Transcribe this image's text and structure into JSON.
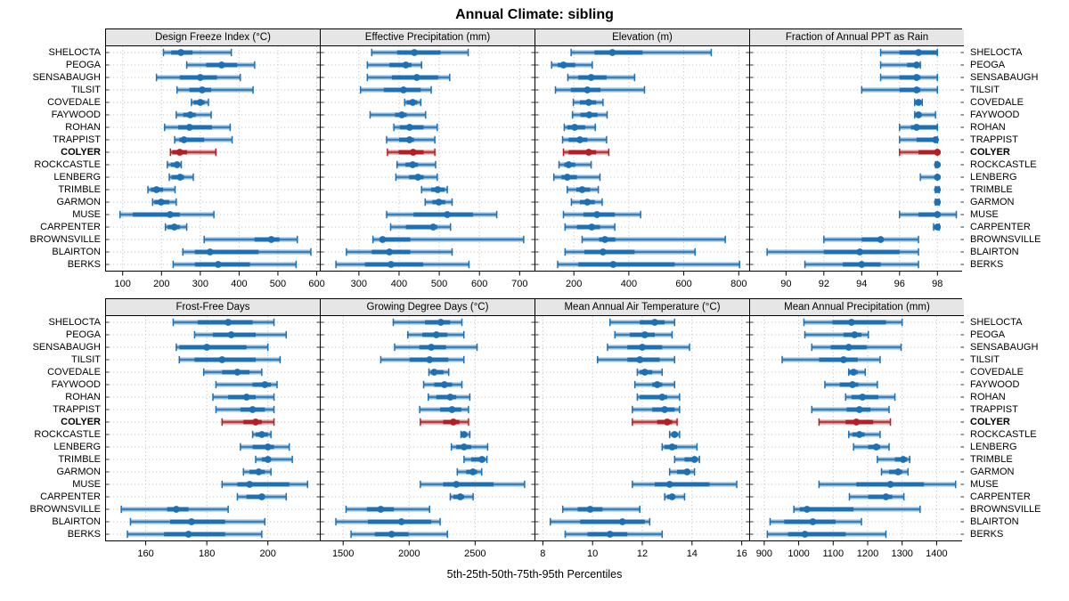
{
  "title": "Annual Climate: sibling",
  "caption": "5th-25th-50th-75th-95th Percentiles",
  "colors": {
    "blue": "#1d70b4",
    "red": "#b22025",
    "grid": "#c6c6c6",
    "header_bg": "#e6e6e6",
    "border": "#000000",
    "band_opacity": 0.5
  },
  "chart_data": {
    "type": "dot-interval-trellis",
    "title": "Annual Climate: sibling",
    "percentile_labels": [
      "5th",
      "25th",
      "50th",
      "75th",
      "95th"
    ],
    "legend_position": "none",
    "grid": true,
    "highlight_site": "COLYER",
    "sites": [
      "SHELOCTA",
      "PEOGA",
      "SENSABAUGH",
      "TILSIT",
      "COVEDALE",
      "FAYWOOD",
      "ROHAN",
      "TRAPPIST",
      "COLYER",
      "ROCKCASTLE",
      "LENBERG",
      "TRIMBLE",
      "GARMON",
      "MUSE",
      "CARPENTER",
      "BROWNSVILLE",
      "BLAIRTON",
      "BERKS"
    ],
    "panels": [
      {
        "title": "Design Freeze Index (°C)",
        "xlim": [
          57,
          608
        ],
        "ticks": [
          100,
          200,
          300,
          400,
          500,
          600
        ],
        "values": [
          [
            205,
            225,
            250,
            280,
            380
          ],
          [
            265,
            315,
            355,
            395,
            440
          ],
          [
            187,
            247,
            300,
            343,
            403
          ],
          [
            240,
            272,
            305,
            328,
            436
          ],
          [
            277,
            283,
            300,
            311,
            321
          ],
          [
            238,
            256,
            274,
            288,
            328
          ],
          [
            208,
            243,
            272,
            330,
            377
          ],
          [
            234,
            246,
            258,
            310,
            382
          ],
          [
            223,
            228,
            247,
            266,
            340
          ],
          [
            215,
            224,
            240,
            247,
            251
          ],
          [
            220,
            226,
            248,
            258,
            282
          ],
          [
            165,
            173,
            187,
            204,
            235
          ],
          [
            177,
            182,
            199,
            220,
            238
          ],
          [
            93,
            126,
            222,
            247,
            335
          ],
          [
            210,
            216,
            233,
            247,
            265
          ],
          [
            310,
            440,
            483,
            504,
            550
          ],
          [
            255,
            286,
            325,
            450,
            585
          ],
          [
            230,
            286,
            346,
            428,
            547
          ]
        ]
      },
      {
        "title": "Effective Precipitation (mm)",
        "xlim": [
          205,
          737
        ],
        "ticks": [
          300,
          400,
          500,
          600,
          700
        ],
        "values": [
          [
            332,
            395,
            438,
            503,
            572
          ],
          [
            321,
            376,
            417,
            431,
            456
          ],
          [
            321,
            382,
            444,
            497,
            526
          ],
          [
            304,
            362,
            411,
            454,
            480
          ],
          [
            414,
            419,
            434,
            445,
            454
          ],
          [
            328,
            390,
            407,
            419,
            466
          ],
          [
            387,
            402,
            426,
            461,
            495
          ],
          [
            369,
            400,
            426,
            437,
            489
          ],
          [
            371,
            399,
            435,
            461,
            489
          ],
          [
            395,
            416,
            434,
            447,
            491
          ],
          [
            392,
            425,
            447,
            461,
            495
          ],
          [
            456,
            480,
            496,
            513,
            520
          ],
          [
            465,
            483,
            499,
            515,
            532
          ],
          [
            369,
            436,
            520,
            584,
            643
          ],
          [
            379,
            417,
            485,
            495,
            528
          ],
          [
            335,
            354,
            359,
            428,
            710
          ],
          [
            269,
            332,
            376,
            428,
            532
          ],
          [
            243,
            315,
            380,
            460,
            574
          ]
        ]
      },
      {
        "title": "Elevation (m)",
        "xlim": [
          60,
          838
        ],
        "ticks": [
          200,
          400,
          600,
          800
        ],
        "values": [
          [
            190,
            275,
            340,
            450,
            700
          ],
          [
            119,
            141,
            162,
            205,
            267
          ],
          [
            178,
            216,
            263,
            319,
            421
          ],
          [
            133,
            189,
            249,
            297,
            457
          ],
          [
            198,
            222,
            254,
            281,
            306
          ],
          [
            195,
            224,
            256,
            286,
            321
          ],
          [
            165,
            176,
            203,
            241,
            278
          ],
          [
            159,
            181,
            222,
            249,
            319
          ],
          [
            162,
            181,
            254,
            281,
            327
          ],
          [
            146,
            165,
            181,
            205,
            263
          ],
          [
            127,
            155,
            176,
            211,
            295
          ],
          [
            176,
            209,
            230,
            259,
            289
          ],
          [
            191,
            222,
            249,
            276,
            303
          ],
          [
            162,
            235,
            284,
            349,
            443
          ],
          [
            168,
            211,
            265,
            295,
            349
          ],
          [
            230,
            292,
            313,
            351,
            751
          ],
          [
            168,
            238,
            306,
            421,
            641
          ],
          [
            141,
            216,
            343,
            567,
            803
          ]
        ]
      },
      {
        "title": "Fraction of Annual PPT as Rain",
        "xlim": [
          88.1,
          99.4
        ],
        "ticks": [
          90,
          92,
          94,
          96,
          98
        ],
        "values": [
          [
            95,
            96,
            97,
            98,
            98
          ],
          [
            95,
            96.4,
            96.9,
            97,
            97.1
          ],
          [
            95,
            96,
            96.9,
            97.1,
            98
          ],
          [
            94,
            96,
            96.9,
            97.1,
            98
          ],
          [
            96.8,
            96.9,
            97,
            97.1,
            97.2
          ],
          [
            96.8,
            96.9,
            97,
            97.1,
            97.9
          ],
          [
            96,
            96.6,
            96.9,
            98,
            98
          ],
          [
            96,
            96.9,
            97.9,
            98,
            98
          ],
          [
            96,
            97,
            98,
            98,
            98
          ],
          [
            97.9,
            98,
            98,
            98,
            98
          ],
          [
            97.1,
            97.9,
            98,
            98,
            98
          ],
          [
            97.9,
            98,
            98,
            98,
            98.1
          ],
          [
            97.9,
            98,
            98,
            98,
            98.1
          ],
          [
            96,
            97,
            98,
            98,
            99
          ],
          [
            97.8,
            97.9,
            98,
            98,
            98.1
          ],
          [
            92,
            94,
            95,
            95.1,
            97
          ],
          [
            89,
            92,
            93.9,
            96,
            97
          ],
          [
            91,
            93,
            94,
            95,
            97
          ]
        ]
      },
      {
        "title": "Frost-Free Days",
        "xlim": [
          147,
          217
        ],
        "ticks": [
          160,
          180,
          200
        ],
        "values": [
          [
            169,
            177,
            187,
            195,
            202
          ],
          [
            176,
            182,
            188,
            196,
            206
          ],
          [
            170,
            171,
            180,
            193,
            200
          ],
          [
            171,
            176,
            185,
            196,
            204
          ],
          [
            179,
            185,
            190,
            194,
            198
          ],
          [
            183,
            195,
            199,
            201,
            203
          ],
          [
            182,
            187,
            193,
            196,
            202
          ],
          [
            183,
            191,
            195,
            199,
            202
          ],
          [
            185,
            192,
            196,
            198,
            202
          ],
          [
            195,
            196,
            198,
            200,
            201
          ],
          [
            191,
            195,
            200,
            202,
            207
          ],
          [
            196,
            198,
            200,
            201,
            208
          ],
          [
            192,
            194,
            197,
            199,
            201
          ],
          [
            185,
            190,
            194,
            207,
            213
          ],
          [
            190,
            193,
            198,
            199,
            206
          ],
          [
            152,
            167,
            170,
            174,
            187
          ],
          [
            155,
            168,
            175,
            186,
            199
          ],
          [
            154,
            166,
            174,
            186,
            198
          ]
        ]
      },
      {
        "title": "Growing Degree Days (°C)",
        "xlim": [
          1330,
          2950
        ],
        "ticks": [
          1500,
          2000,
          2500
        ],
        "values": [
          [
            1880,
            2120,
            2240,
            2310,
            2400
          ],
          [
            1990,
            2100,
            2206,
            2290,
            2415
          ],
          [
            1890,
            2078,
            2168,
            2280,
            2515
          ],
          [
            1785,
            2003,
            2155,
            2297,
            2415
          ],
          [
            2150,
            2165,
            2190,
            2260,
            2300
          ],
          [
            2110,
            2190,
            2267,
            2325,
            2400
          ],
          [
            2145,
            2206,
            2312,
            2357,
            2460
          ],
          [
            2080,
            2235,
            2325,
            2395,
            2450
          ],
          [
            2085,
            2258,
            2335,
            2380,
            2450
          ],
          [
            2393,
            2403,
            2416,
            2438,
            2460
          ],
          [
            2320,
            2357,
            2416,
            2470,
            2595
          ],
          [
            2416,
            2470,
            2552,
            2574,
            2590
          ],
          [
            2365,
            2432,
            2484,
            2515,
            2550
          ],
          [
            2085,
            2258,
            2357,
            2640,
            2875
          ],
          [
            2312,
            2335,
            2387,
            2416,
            2485
          ],
          [
            1522,
            1680,
            1785,
            1885,
            2155
          ],
          [
            1445,
            1687,
            1942,
            2168,
            2235
          ],
          [
            1560,
            1740,
            1868,
            1996,
            2290
          ]
        ]
      },
      {
        "title": "Mean Annual Air Temperature (°C)",
        "xlim": [
          7.7,
          16.3
        ],
        "ticks": [
          8,
          10,
          12,
          14,
          16
        ],
        "values": [
          [
            10.7,
            11.9,
            12.5,
            12.9,
            13.3
          ],
          [
            10.9,
            11.5,
            12.1,
            12.5,
            13.2
          ],
          [
            10.6,
            11.4,
            12.0,
            12.8,
            13.9
          ],
          [
            10.2,
            11.4,
            11.9,
            12.7,
            13.3
          ],
          [
            11.8,
            11.9,
            12.1,
            12.4,
            12.8
          ],
          [
            11.7,
            12.4,
            12.6,
            12.8,
            13.3
          ],
          [
            11.8,
            11.9,
            12.8,
            13.0,
            13.5
          ],
          [
            11.6,
            12.4,
            12.9,
            13.3,
            13.5
          ],
          [
            11.6,
            12.6,
            13.0,
            13.2,
            13.4
          ],
          [
            13.1,
            13.2,
            13.3,
            13.4,
            13.5
          ],
          [
            12.8,
            12.9,
            13.2,
            13.4,
            14.2
          ],
          [
            13.3,
            13.7,
            14.1,
            14.2,
            14.3
          ],
          [
            13.1,
            13.4,
            13.8,
            13.9,
            14.1
          ],
          [
            11.6,
            12.5,
            13.1,
            14.7,
            15.8
          ],
          [
            12.9,
            13.0,
            13.2,
            13.3,
            13.7
          ],
          [
            8.8,
            9.4,
            9.9,
            10.4,
            11.9
          ],
          [
            8.3,
            9.5,
            11.2,
            12.1,
            12.3
          ],
          [
            8.9,
            9.8,
            10.7,
            11.4,
            12.8
          ]
        ]
      },
      {
        "title": "Mean Annual Precipitation (mm)",
        "xlim": [
          859,
          1479
        ],
        "ticks": [
          900,
          1000,
          1100,
          1200,
          1300,
          1400
        ],
        "values": [
          [
            1015,
            1098,
            1153,
            1253,
            1300
          ],
          [
            1018,
            1130,
            1162,
            1182,
            1202
          ],
          [
            1038,
            1093,
            1145,
            1197,
            1297
          ],
          [
            952,
            1059,
            1130,
            1171,
            1236
          ],
          [
            1145,
            1147,
            1159,
            1171,
            1193
          ],
          [
            1076,
            1119,
            1156,
            1173,
            1228
          ],
          [
            1136,
            1153,
            1185,
            1231,
            1279
          ],
          [
            1038,
            1139,
            1176,
            1208,
            1262
          ],
          [
            1059,
            1136,
            1167,
            1216,
            1266
          ],
          [
            1145,
            1156,
            1176,
            1191,
            1236
          ],
          [
            1159,
            1202,
            1225,
            1236,
            1262
          ],
          [
            1228,
            1279,
            1303,
            1314,
            1322
          ],
          [
            1240,
            1262,
            1288,
            1300,
            1317
          ],
          [
            1059,
            1167,
            1266,
            1363,
            1455
          ],
          [
            1147,
            1202,
            1253,
            1271,
            1305
          ],
          [
            986,
            1003,
            1024,
            1159,
            1352
          ],
          [
            917,
            958,
            1041,
            1107,
            1182
          ],
          [
            909,
            969,
            1018,
            1136,
            1253
          ]
        ]
      }
    ]
  }
}
